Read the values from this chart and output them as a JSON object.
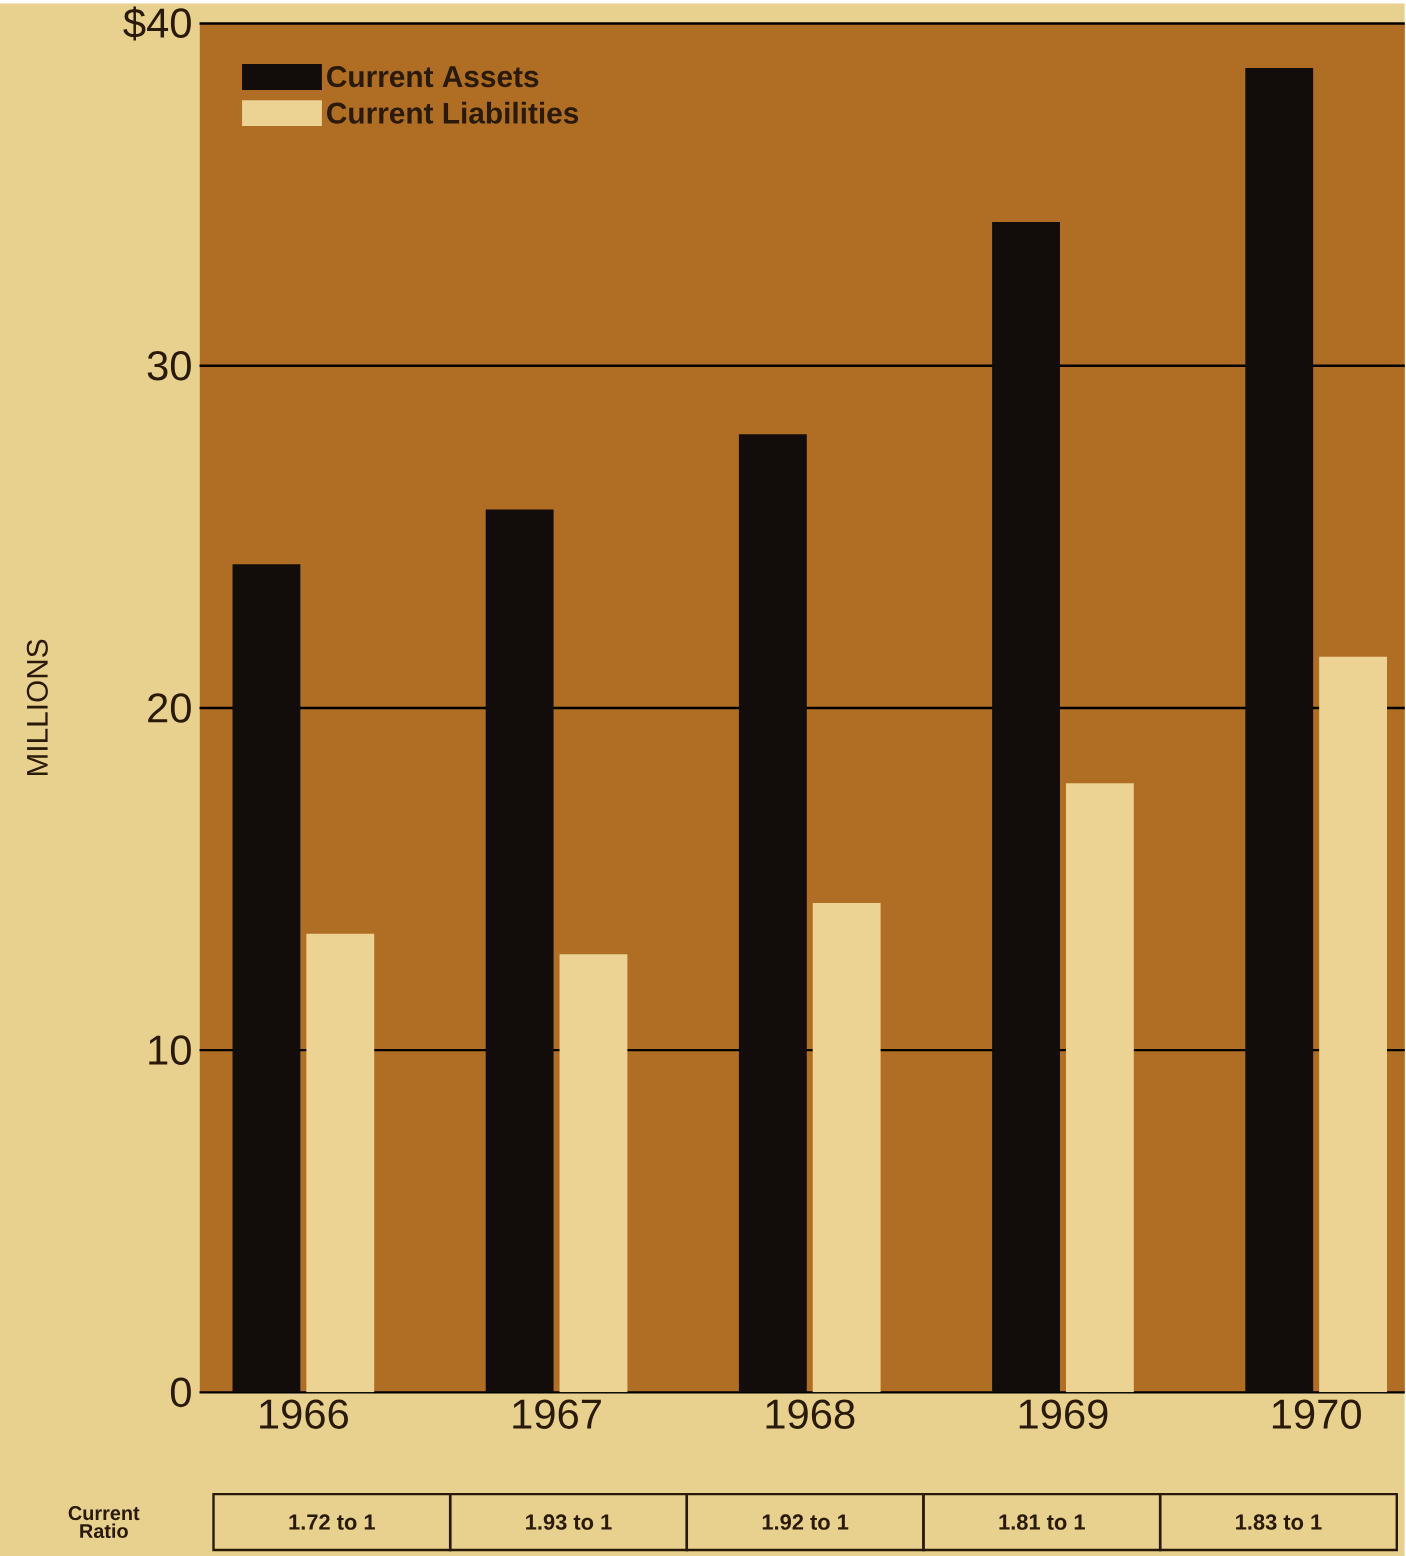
{
  "chart_data": {
    "type": "bar",
    "categories": [
      "1966",
      "1967",
      "1968",
      "1969",
      "1970"
    ],
    "series": [
      {
        "name": "Current Assets",
        "color": "#120c0a",
        "values": [
          24.2,
          25.8,
          28.0,
          34.2,
          38.7
        ]
      },
      {
        "name": "Current Liabilities",
        "color": "#ecd394",
        "values": [
          13.4,
          12.8,
          14.3,
          17.8,
          21.5
        ]
      }
    ],
    "ylabel": "MILLIONS",
    "ylim": [
      0,
      40
    ],
    "yticks": [
      0,
      10,
      20,
      30,
      {
        "value": 40,
        "label": "$40"
      }
    ],
    "grid": "y",
    "legend": "top left",
    "annotations": [
      "Current Ratio",
      "1.72 to 1",
      "1.93 to 1",
      "1.92 to 1",
      "1.81 to 1",
      "1.83 to 1"
    ]
  }
}
